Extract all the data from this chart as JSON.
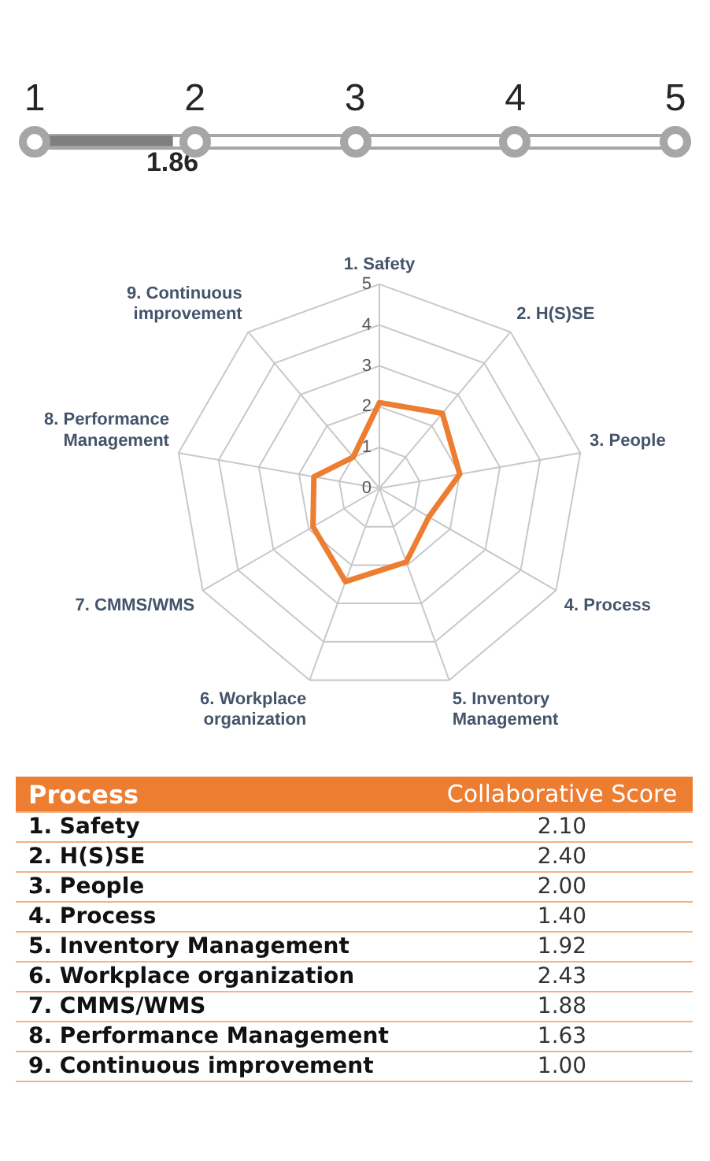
{
  "chart_data": [
    {
      "type": "bar",
      "orientation": "horizontal",
      "categories": [
        null
      ],
      "values": [
        1.86
      ],
      "color": "#7f7f7f",
      "xlim": [
        1,
        5
      ],
      "xticks": [
        1,
        2,
        3,
        4,
        5
      ],
      "data_labels": true
    },
    {
      "type": "radar",
      "categories": [
        "1. Safety",
        "2. H(S)SE",
        "3. People",
        "4. Process",
        "5. Inventory Management",
        "6. Workplace organization",
        "7. CMMS/WMS",
        "8. Performance Management",
        "9. Continuous improvement"
      ],
      "series": [
        {
          "color": "#ed7d31",
          "values": [
            2.1,
            2.4,
            2.0,
            1.4,
            1.92,
            2.43,
            1.88,
            1.63,
            1.0
          ]
        }
      ],
      "value_labels": [
        "2.10",
        "2.40",
        "2.00",
        "1.40",
        "1.92",
        "2.43",
        "1.88",
        "1.63",
        "1.00"
      ],
      "ylim": [
        0,
        5
      ],
      "yticks": [
        0,
        1,
        2,
        3,
        4,
        5
      ],
      "grid": true,
      "annotations": [
        "Process",
        "Collaborative Score"
      ]
    }
  ]
}
